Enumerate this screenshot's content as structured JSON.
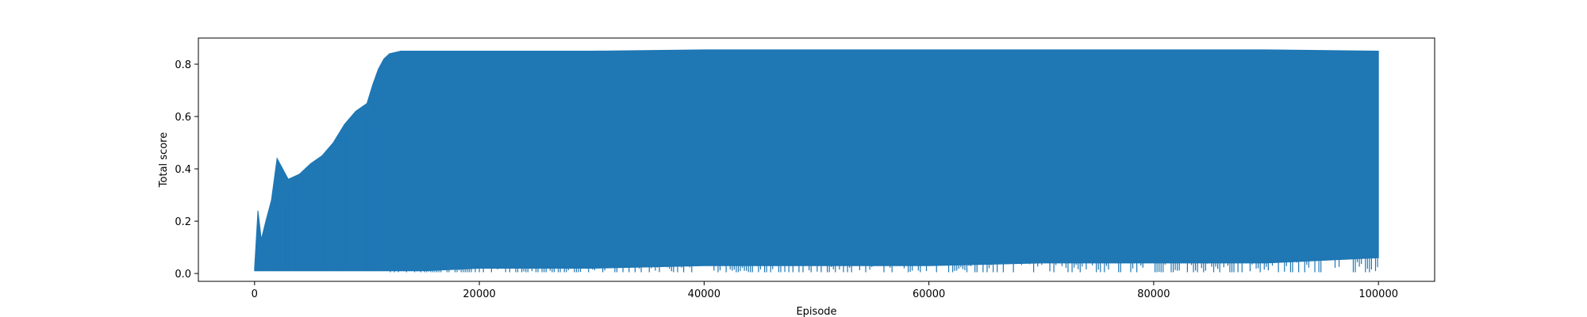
{
  "chart_data": {
    "type": "line",
    "title": "",
    "xlabel": "Episode",
    "ylabel": "Total score",
    "xlim": [
      -5000,
      105000
    ],
    "ylim": [
      -0.03,
      0.9
    ],
    "xticks": [
      0,
      20000,
      40000,
      60000,
      80000,
      100000
    ],
    "xtick_labels": [
      "0",
      "20000",
      "40000",
      "60000",
      "80000",
      "100000"
    ],
    "yticks": [
      0.0,
      0.2,
      0.4,
      0.6,
      0.8
    ],
    "ytick_labels": [
      "0.0",
      "0.2",
      "0.4",
      "0.6",
      "0.8"
    ],
    "grid": false,
    "legend": "none",
    "series": [
      {
        "color": "#1f77b4",
        "x": [
          0,
          300,
          600,
          1000,
          1500,
          2000,
          3000,
          4000,
          5000,
          6000,
          7000,
          8000,
          9000,
          10000,
          10500,
          11000,
          11500,
          12000,
          13000,
          15000,
          20000,
          30000,
          40000,
          50000,
          60000,
          70000,
          80000,
          90000,
          100000
        ],
        "upper": [
          0.02,
          0.24,
          0.13,
          0.2,
          0.28,
          0.44,
          0.36,
          0.38,
          0.42,
          0.45,
          0.5,
          0.57,
          0.62,
          0.65,
          0.72,
          0.78,
          0.82,
          0.84,
          0.85,
          0.85,
          0.85,
          0.85,
          0.855,
          0.855,
          0.855,
          0.855,
          0.855,
          0.855,
          0.85
        ],
        "lower": [
          0.01,
          0.01,
          0.01,
          0.01,
          0.01,
          0.01,
          0.01,
          0.01,
          0.01,
          0.01,
          0.01,
          0.01,
          0.01,
          0.01,
          0.01,
          0.01,
          0.01,
          0.01,
          0.01,
          0.01,
          0.02,
          0.02,
          0.03,
          0.03,
          0.03,
          0.04,
          0.04,
          0.04,
          0.06
        ]
      }
    ]
  }
}
